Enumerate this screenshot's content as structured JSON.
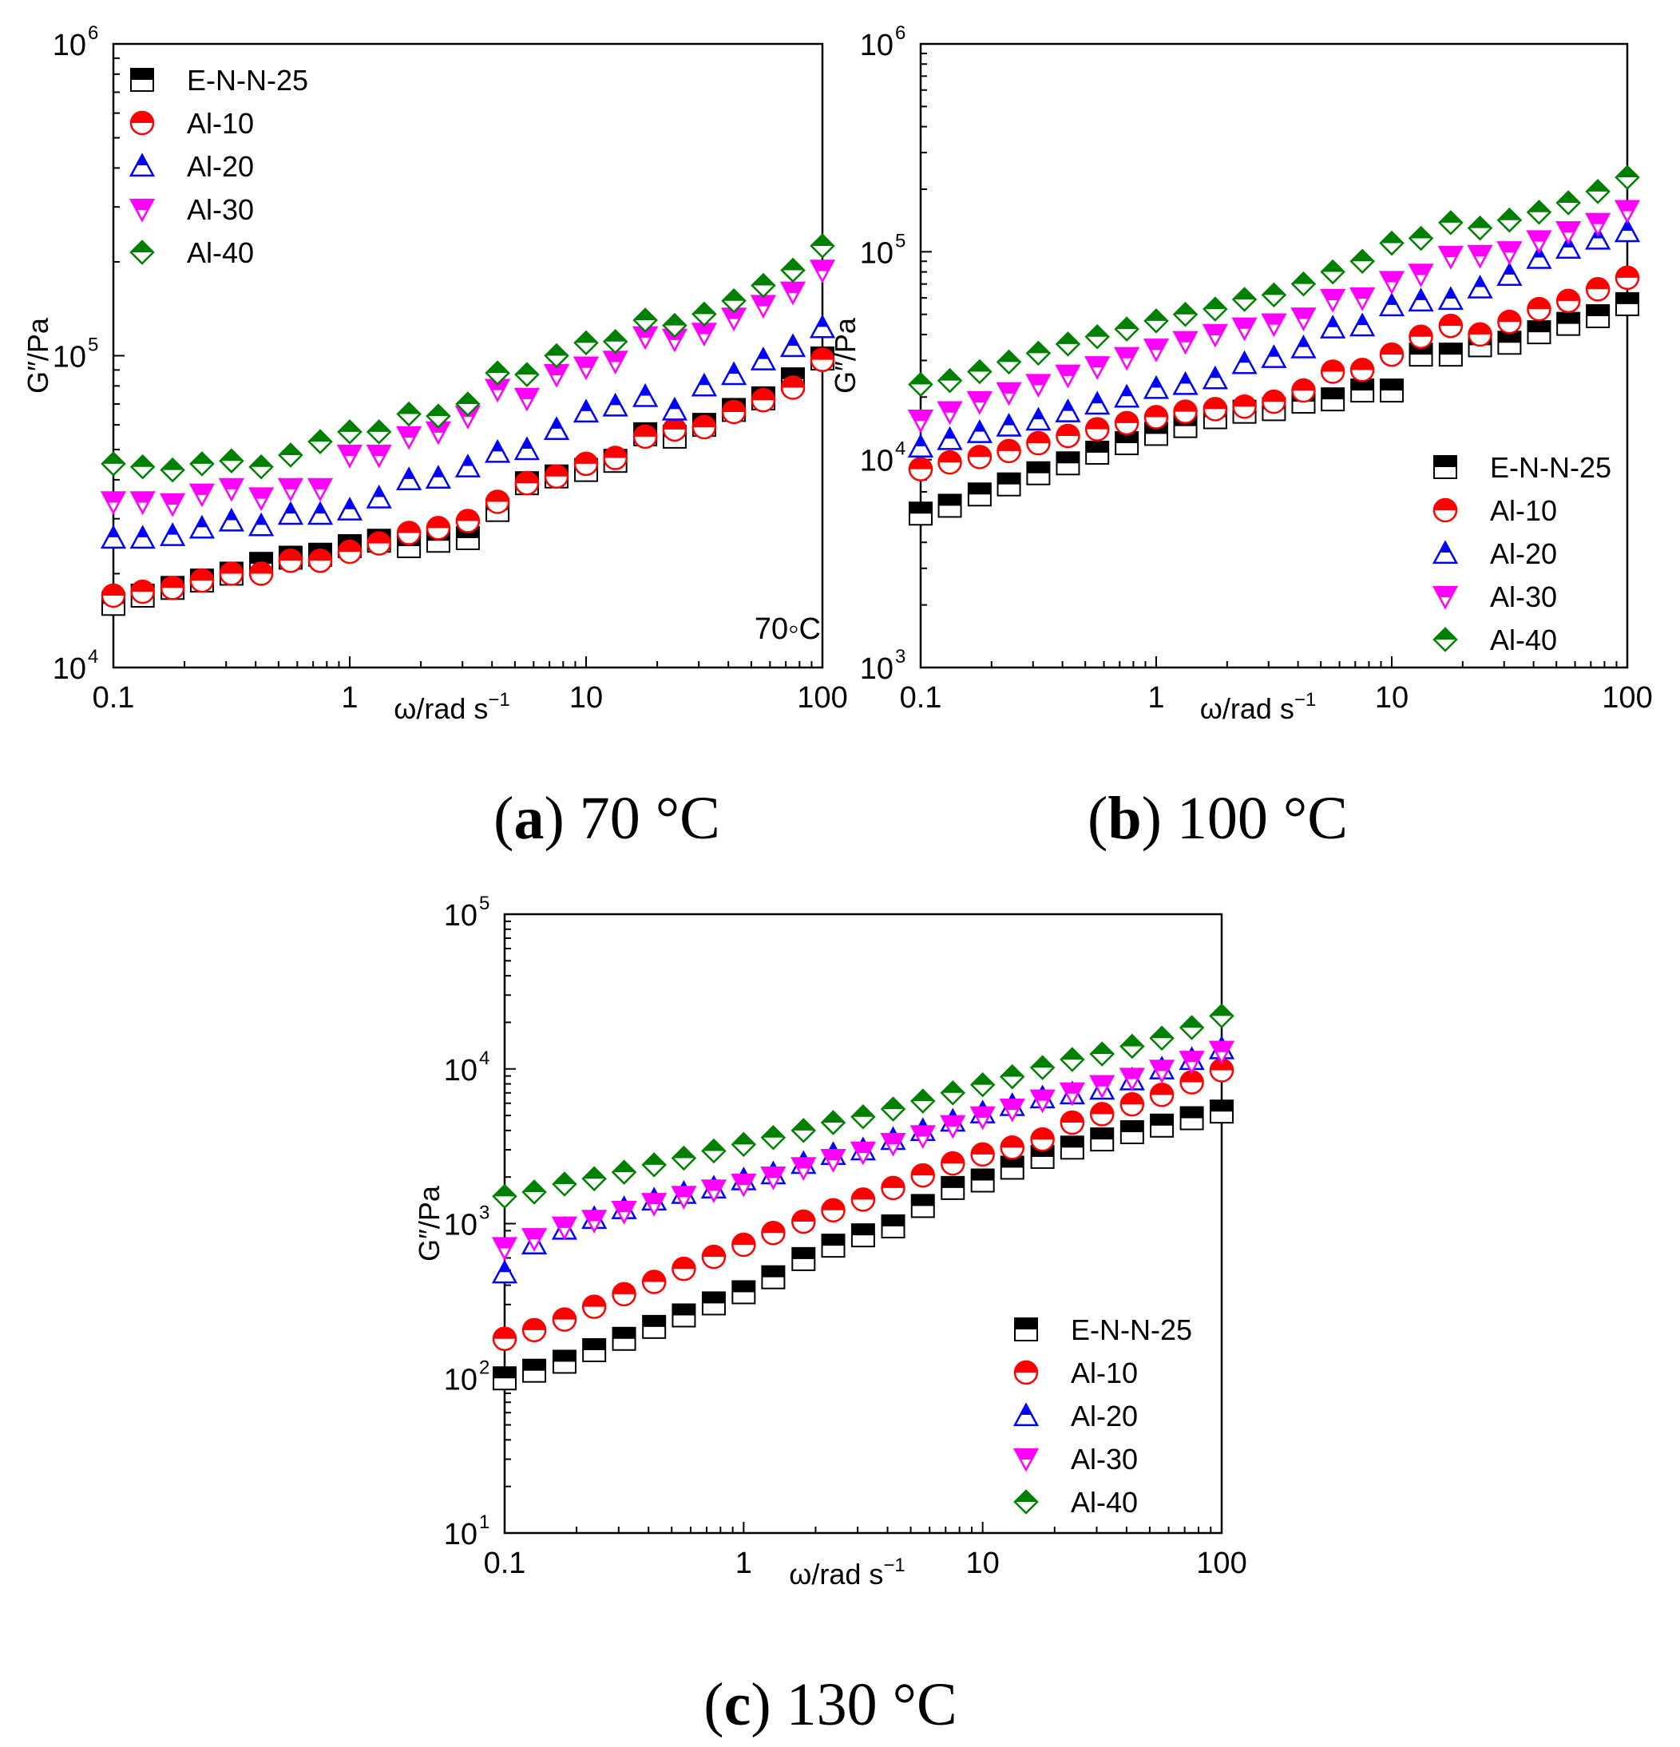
{
  "chart_data": [
    {
      "type": "scatter",
      "panel": "a",
      "caption": {
        "letter": "a",
        "rest": "70 °C"
      },
      "annotation": "70◦C",
      "xlabel": "ω/rad s",
      "xlabel_sup": "−1",
      "ylabel": "G″/Pa",
      "xscale": "log",
      "yscale": "log",
      "xlim": [
        0.1,
        100
      ],
      "ylim": [
        10000,
        1000000
      ],
      "x_ticks": [
        {
          "v": 0.1,
          "label": "0.1"
        },
        {
          "v": 1,
          "label": "1"
        },
        {
          "v": 10,
          "label": "10"
        },
        {
          "v": 100,
          "label": "100"
        }
      ],
      "y_ticks": [
        {
          "v": 10000,
          "base": "10",
          "exp": "4"
        },
        {
          "v": 100000,
          "base": "10",
          "exp": "5"
        },
        {
          "v": 1000000,
          "base": "10",
          "exp": "6"
        }
      ],
      "legend_position": "top-left",
      "x": [
        0.1,
        0.133,
        0.178,
        0.237,
        0.316,
        0.422,
        0.562,
        0.75,
        1,
        1.33,
        1.78,
        2.37,
        3.16,
        4.22,
        5.62,
        7.5,
        10,
        13.3,
        17.8,
        23.7,
        31.6,
        42.2,
        56.2,
        75,
        100
      ],
      "series": [
        {
          "name": "E-N-N-25",
          "marker": "square",
          "color": "#000000",
          "values": [
            16000,
            17000,
            18000,
            19000,
            20000,
            21500,
            22500,
            23000,
            24500,
            25500,
            24500,
            25500,
            26000,
            32000,
            39000,
            41000,
            43000,
            46000,
            56000,
            55000,
            60000,
            67000,
            73000,
            84000,
            98000
          ]
        },
        {
          "name": "Al-10",
          "marker": "circle",
          "color": "#ff0000",
          "values": [
            17000,
            17500,
            18000,
            19000,
            20000,
            20000,
            22000,
            22000,
            23500,
            25000,
            27000,
            28000,
            29500,
            34000,
            39000,
            41000,
            45000,
            47000,
            55000,
            58000,
            59000,
            66000,
            72000,
            79000,
            97000
          ]
        },
        {
          "name": "Al-20",
          "marker": "triangle-up",
          "color": "#0000ff",
          "values": [
            26000,
            26000,
            26500,
            28000,
            29500,
            28500,
            31000,
            31000,
            32000,
            35000,
            40000,
            40500,
            44000,
            49000,
            50000,
            58000,
            66000,
            69000,
            74000,
            67000,
            80000,
            87000,
            97000,
            107000,
            123000
          ]
        },
        {
          "name": "Al-30",
          "marker": "triangle-down",
          "color": "#ff00ff",
          "values": [
            34000,
            34000,
            33500,
            36000,
            37500,
            35000,
            37500,
            37500,
            48000,
            48000,
            55000,
            57000,
            64000,
            78000,
            73000,
            87000,
            92000,
            96000,
            115000,
            113000,
            118000,
            132000,
            145000,
            160000,
            188000
          ]
        },
        {
          "name": "Al-40",
          "marker": "diamond",
          "color": "#008000",
          "values": [
            45000,
            44000,
            43000,
            45000,
            46000,
            44000,
            48000,
            53000,
            57000,
            57000,
            65000,
            64000,
            70000,
            88000,
            87000,
            100000,
            110000,
            111000,
            130000,
            125000,
            136000,
            150000,
            168000,
            188000,
            225000
          ]
        }
      ]
    },
    {
      "type": "scatter",
      "panel": "b",
      "caption": {
        "letter": "b",
        "rest": "100 °C"
      },
      "xlabel": "ω/rad s",
      "xlabel_sup": "−1",
      "ylabel": "G″/Pa",
      "xscale": "log",
      "yscale": "log",
      "xlim": [
        0.1,
        100
      ],
      "ylim": [
        1000,
        1000000
      ],
      "x_ticks": [
        {
          "v": 0.1,
          "label": "0.1"
        },
        {
          "v": 1,
          "label": "1"
        },
        {
          "v": 10,
          "label": "10"
        },
        {
          "v": 100,
          "label": "100"
        }
      ],
      "y_ticks": [
        {
          "v": 1000,
          "base": "10",
          "exp": "3"
        },
        {
          "v": 10000,
          "base": "10",
          "exp": "4"
        },
        {
          "v": 100000,
          "base": "10",
          "exp": "5"
        },
        {
          "v": 1000000,
          "base": "10",
          "exp": "6"
        }
      ],
      "legend_position": "bottom-right",
      "x": [
        0.1,
        0.133,
        0.178,
        0.237,
        0.316,
        0.422,
        0.562,
        0.75,
        1,
        1.33,
        1.78,
        2.37,
        3.16,
        4.22,
        5.62,
        7.5,
        10,
        13.3,
        17.8,
        23.7,
        31.6,
        42.2,
        56.2,
        75,
        100
      ],
      "series": [
        {
          "name": "E-N-N-25",
          "marker": "square",
          "color": "#000000",
          "values": [
            5500,
            6000,
            6800,
            7600,
            8600,
            9600,
            10800,
            12000,
            13300,
            14500,
            16000,
            17000,
            17500,
            19000,
            19500,
            21500,
            21500,
            32000,
            32000,
            35500,
            36500,
            41000,
            45000,
            49000,
            56000
          ]
        },
        {
          "name": "Al-10",
          "marker": "circle",
          "color": "#ff0000",
          "values": [
            9000,
            9700,
            10300,
            11000,
            12000,
            13000,
            14000,
            15000,
            16000,
            17000,
            17500,
            18000,
            19000,
            21500,
            26500,
            27000,
            32000,
            39000,
            44000,
            40000,
            46000,
            53000,
            58000,
            66000,
            75000
          ]
        },
        {
          "name": "Al-20",
          "marker": "triangle-up",
          "color": "#0000ff",
          "values": [
            11500,
            12500,
            13500,
            14500,
            15500,
            17000,
            18500,
            20000,
            22000,
            23000,
            24500,
            29000,
            31000,
            34500,
            43000,
            44000,
            55000,
            58000,
            59000,
            67000,
            77000,
            93000,
            104000,
            115000,
            125000
          ]
        },
        {
          "name": "Al-30",
          "marker": "triangle-down",
          "color": "#ff00ff",
          "values": [
            15500,
            17000,
            19000,
            21000,
            23000,
            25500,
            28000,
            31000,
            34000,
            37000,
            40000,
            43000,
            45000,
            48000,
            59000,
            60000,
            72000,
            78000,
            95000,
            96000,
            100000,
            113000,
            125000,
            137000,
            158000
          ]
        },
        {
          "name": "Al-40",
          "marker": "diamond",
          "color": "#008000",
          "values": [
            23000,
            24000,
            26500,
            29500,
            32500,
            36000,
            39000,
            42500,
            46500,
            50000,
            53000,
            59000,
            62000,
            70000,
            80000,
            90000,
            110000,
            116000,
            138000,
            130000,
            142000,
            155000,
            172000,
            195000,
            228000
          ]
        }
      ]
    },
    {
      "type": "scatter",
      "panel": "c",
      "caption": {
        "letter": "c",
        "rest": "130 °C"
      },
      "xlabel": "ω/rad s",
      "xlabel_sup": "−1",
      "ylabel": "G″/Pa",
      "xscale": "log",
      "yscale": "log",
      "xlim": [
        0.1,
        100
      ],
      "ylim": [
        10,
        100000
      ],
      "x_ticks": [
        {
          "v": 0.1,
          "label": "0.1"
        },
        {
          "v": 1,
          "label": "1"
        },
        {
          "v": 10,
          "label": "10"
        },
        {
          "v": 100,
          "label": "100"
        }
      ],
      "y_ticks": [
        {
          "v": 10,
          "base": "10",
          "exp": "1"
        },
        {
          "v": 100,
          "base": "10",
          "exp": "2"
        },
        {
          "v": 1000,
          "base": "10",
          "exp": "3"
        },
        {
          "v": 10000,
          "base": "10",
          "exp": "4"
        },
        {
          "v": 100000,
          "base": "10",
          "exp": "5"
        }
      ],
      "legend_position": "bottom-right",
      "x": [
        0.1,
        0.133,
        0.178,
        0.237,
        0.316,
        0.422,
        0.562,
        0.75,
        1,
        1.33,
        1.78,
        2.37,
        3.16,
        4.22,
        5.62,
        7.5,
        10,
        13.3,
        17.8,
        23.7,
        31.6,
        42.2,
        56.2,
        75,
        100
      ],
      "series": [
        {
          "name": "E-N-N-25",
          "marker": "square",
          "color": "#000000",
          "values": [
            100,
            112,
            128,
            152,
            180,
            215,
            255,
            305,
            360,
            450,
            590,
            720,
            840,
            960,
            1300,
            1700,
            1900,
            2300,
            2700,
            3100,
            3500,
            3900,
            4300,
            4800,
            5300
          ]
        },
        {
          "name": "Al-10",
          "marker": "circle",
          "color": "#ff0000",
          "values": [
            180,
            205,
            240,
            290,
            350,
            420,
            510,
            610,
            730,
            870,
            1030,
            1220,
            1430,
            1700,
            2050,
            2450,
            2800,
            3100,
            3500,
            4500,
            5100,
            5900,
            6800,
            8200,
            9800
          ]
        },
        {
          "name": "Al-20",
          "marker": "triangle-up",
          "color": "#0000ff",
          "values": [
            480,
            740,
            920,
            1080,
            1250,
            1420,
            1570,
            1700,
            1920,
            2100,
            2450,
            2800,
            3000,
            3500,
            4000,
            4600,
            5200,
            5800,
            6500,
            6900,
            7400,
            8500,
            10000,
            11500,
            13500
          ]
        },
        {
          "name": "Al-30",
          "marker": "triangle-down",
          "color": "#ff00ff",
          "values": [
            700,
            800,
            950,
            1050,
            1200,
            1350,
            1500,
            1650,
            1800,
            2000,
            2300,
            2600,
            2900,
            3300,
            3700,
            4300,
            4900,
            5500,
            6300,
            7000,
            7800,
            8700,
            9800,
            11200,
            13000
          ]
        },
        {
          "name": "Al-40",
          "marker": "diamond",
          "color": "#008000",
          "values": [
            1500,
            1600,
            1800,
            1950,
            2150,
            2400,
            2650,
            2950,
            3250,
            3600,
            4000,
            4500,
            4900,
            5500,
            6200,
            7000,
            7900,
            8900,
            10200,
            11500,
            12500,
            14000,
            15800,
            18500,
            22000
          ]
        }
      ]
    }
  ]
}
